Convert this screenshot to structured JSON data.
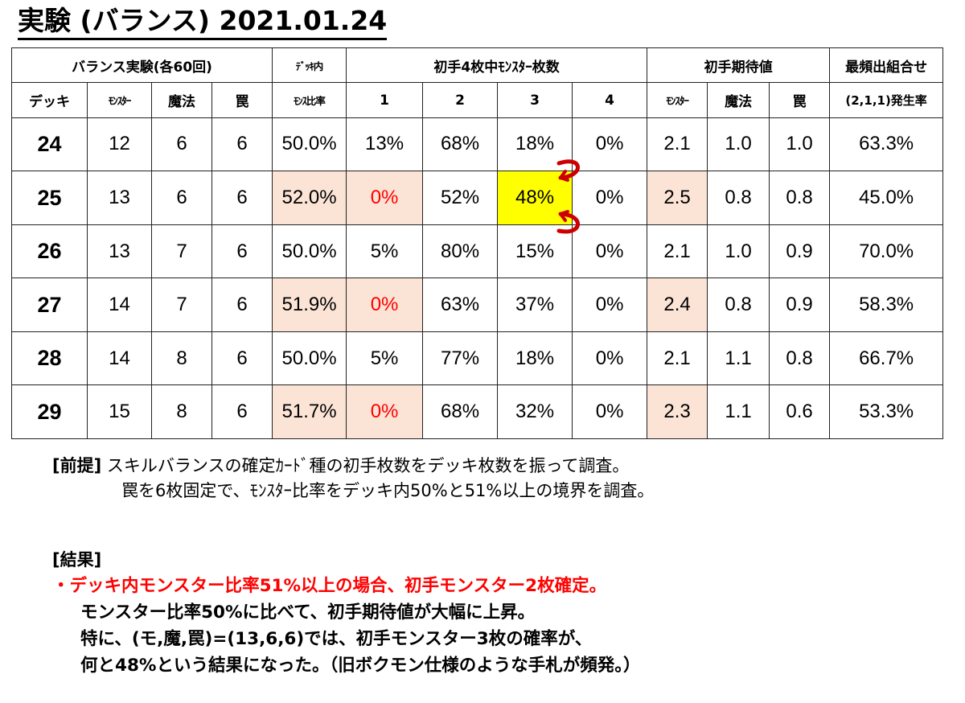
{
  "title": "実験 (バランス) 2021.01.24",
  "header": {
    "group_balance": "バランス実験(各60回)",
    "ratio_top": "ﾃﾞｯｷ内",
    "ratio_bottom": "ﾓﾝｽ比率",
    "group_count": "初手4枚中ﾓﾝｽﾀｰ枚数",
    "group_expect": "初手期待値",
    "freq_top": "最頻出組合せ",
    "freq_bottom": "(2,1,1)発生率",
    "deck": "デッキ",
    "monster": "ﾓﾝｽﾀｰ",
    "magic": "魔法",
    "trap": "罠",
    "c1": "1",
    "c2": "2",
    "c3": "3",
    "c4": "4",
    "e_monster": "ﾓﾝｽﾀｰ",
    "e_magic": "魔法",
    "e_trap": "罠"
  },
  "rows": [
    {
      "deck": "24",
      "monster": "12",
      "magic": "6",
      "trap": "6",
      "ratio": "50.0%",
      "c1": "13%",
      "c2": "68%",
      "c3": "18%",
      "c4": "0%",
      "em": "2.1",
      "emg": "1.0",
      "et": "1.0",
      "freq": "63.3%"
    },
    {
      "deck": "25",
      "monster": "13",
      "magic": "6",
      "trap": "6",
      "ratio": "52.0%",
      "c1": "0%",
      "c2": "52%",
      "c3": "48%",
      "c4": "0%",
      "em": "2.5",
      "emg": "0.8",
      "et": "0.8",
      "freq": "45.0%"
    },
    {
      "deck": "26",
      "monster": "13",
      "magic": "7",
      "trap": "6",
      "ratio": "50.0%",
      "c1": "5%",
      "c2": "80%",
      "c3": "15%",
      "c4": "0%",
      "em": "2.1",
      "emg": "1.0",
      "et": "0.9",
      "freq": "70.0%"
    },
    {
      "deck": "27",
      "monster": "14",
      "magic": "7",
      "trap": "6",
      "ratio": "51.9%",
      "c1": "0%",
      "c2": "63%",
      "c3": "37%",
      "c4": "0%",
      "em": "2.4",
      "emg": "0.8",
      "et": "0.9",
      "freq": "58.3%"
    },
    {
      "deck": "28",
      "monster": "14",
      "magic": "8",
      "trap": "6",
      "ratio": "50.0%",
      "c1": "5%",
      "c2": "77%",
      "c3": "18%",
      "c4": "0%",
      "em": "2.1",
      "emg": "1.1",
      "et": "0.8",
      "freq": "66.7%"
    },
    {
      "deck": "29",
      "monster": "15",
      "magic": "8",
      "trap": "6",
      "ratio": "51.7%",
      "c1": "0%",
      "c2": "68%",
      "c3": "32%",
      "c4": "0%",
      "em": "2.3",
      "emg": "1.1",
      "et": "0.6",
      "freq": "53.3%"
    }
  ],
  "colors": {
    "highlight_pink": "#fbe4d6",
    "highlight_yellow": "#ffff00",
    "emphasis_red": "#ff0000",
    "arrow_red": "#cc0000"
  },
  "notes": {
    "premise_label": "[前提]",
    "premise_line1": " スキルバランスの確定ｶｰﾄﾞ種の初手枚数をデッキ枚数を振って調査。",
    "premise_line2": "罠を6枚固定で、ﾓﾝｽﾀｰ比率をデッキ内50%と51%以上の境界を調査。",
    "result_label": "[結果]",
    "result_line1": "・デッキ内モンスター比率51%以上の場合、初手モンスター2枚確定。",
    "result_line2": "モンスター比率50%に比べて、初手期待値が大幅に上昇。",
    "result_line3": "特に、(モ,魔,罠)=(13,6,6)では、初手モンスター3枚の確率が、",
    "result_line4": "何と48%という結果になった。（旧ボクモン仕様のような手札が頻発。）"
  }
}
